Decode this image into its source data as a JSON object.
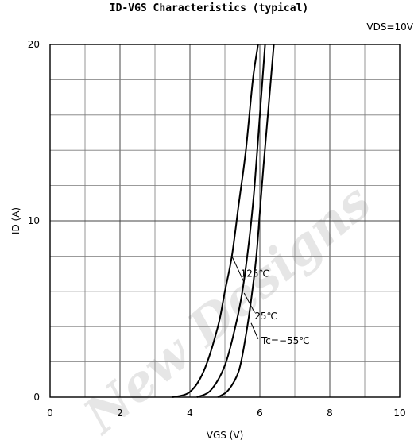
{
  "chart_data": {
    "type": "line",
    "title": "ID-VGS Characteristics (typical)",
    "condition": "VDS=10V",
    "xlabel": "VGS (V)",
    "ylabel": "ID (A)",
    "xlim": [
      0,
      10
    ],
    "ylim": [
      0,
      20
    ],
    "x_ticks": [
      0,
      2,
      4,
      6,
      8,
      10
    ],
    "y_ticks": [
      0,
      10,
      20
    ],
    "grid": true,
    "series": [
      {
        "name": "125℃",
        "x": [
          3.5,
          4.0,
          4.4,
          4.8,
          5.0,
          5.2,
          5.4,
          5.6,
          5.8,
          5.95
        ],
        "y": [
          0.0,
          0.3,
          1.5,
          4.0,
          6.0,
          8.0,
          11.0,
          14.0,
          18.0,
          20.0
        ]
      },
      {
        "name": "25℃",
        "x": [
          4.2,
          4.6,
          5.0,
          5.3,
          5.5,
          5.7,
          5.85,
          6.0,
          6.15
        ],
        "y": [
          0.0,
          0.4,
          1.8,
          4.0,
          6.0,
          9.0,
          12.0,
          16.0,
          20.0
        ]
      },
      {
        "name": "Tc=−55℃",
        "x": [
          4.8,
          5.1,
          5.4,
          5.6,
          5.75,
          5.9,
          6.0,
          6.1,
          6.25,
          6.4
        ],
        "y": [
          0.0,
          0.4,
          1.5,
          3.5,
          5.5,
          8.0,
          10.5,
          13.0,
          16.5,
          20.0
        ]
      }
    ],
    "annotations": [
      {
        "text": "125℃",
        "x": 5.4,
        "y": 7.0
      },
      {
        "text": "25℃",
        "x": 5.8,
        "y": 4.6
      },
      {
        "text": "Tc=−55℃",
        "x": 6.0,
        "y": 3.2
      }
    ]
  },
  "watermark": "New Designs",
  "colors": {
    "curve": "#000000",
    "grid": "#7a7a7a",
    "watermark": "#e6e6e6"
  }
}
